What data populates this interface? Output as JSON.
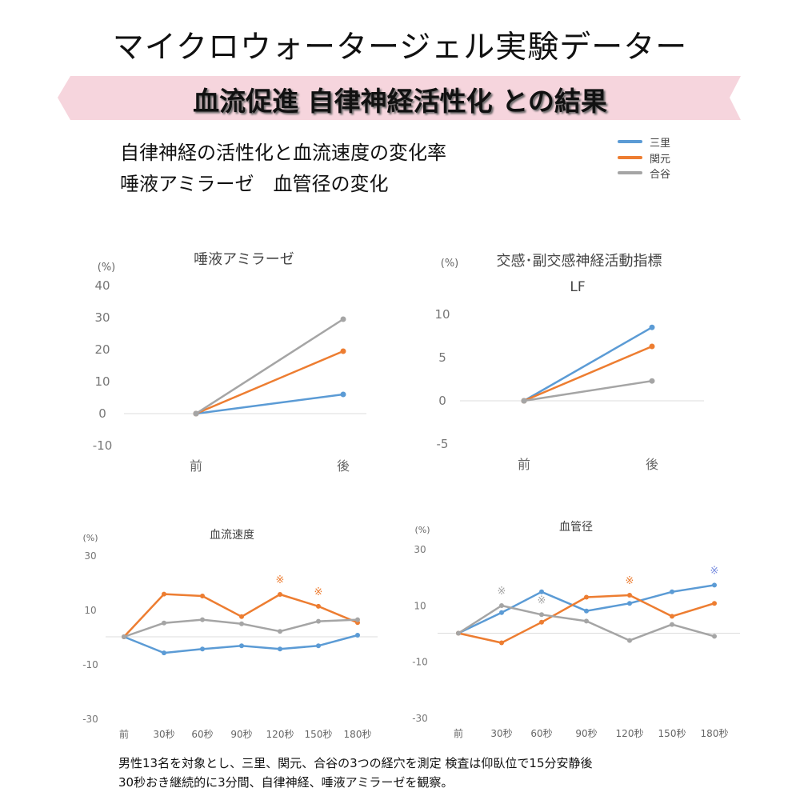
{
  "header": {
    "title": "マイクロウォータージェル実験データー",
    "banner": "血流促進 自律神経活性化 との結果",
    "subtitle_line1": "自律神経の活性化と血流速度の変化率",
    "subtitle_line2": "唾液アミラーゼ　血管径の変化",
    "banner_color": "#f6d5dd"
  },
  "legend": [
    {
      "name": "三里",
      "color": "#5b9bd5"
    },
    {
      "name": "関元",
      "color": "#ed7d31"
    },
    {
      "name": "合谷",
      "color": "#a5a5a5"
    }
  ],
  "footnote": {
    "line1": "男性13名を対象とし、三里、関元、合谷の3つの経穴を測定 検査は仰臥位で15分安静後",
    "line2": "30秒おき継続的に3分間、自律神経、唾液アミラーゼを観察。"
  },
  "chart_data": [
    {
      "type": "line",
      "title": "唾液アミラーゼ",
      "subtitle": "",
      "ylabel": "(%)",
      "xlabel": "",
      "categories": [
        "前",
        "後"
      ],
      "yticks": [
        40,
        30,
        20,
        10,
        0,
        -10
      ],
      "ylim": [
        -10,
        40
      ],
      "grid": false,
      "series": [
        {
          "name": "三里",
          "color": "#5b9bd5",
          "values": [
            0,
            6
          ]
        },
        {
          "name": "関元",
          "color": "#ed7d31",
          "values": [
            0,
            19.5
          ]
        },
        {
          "name": "合谷",
          "color": "#a5a5a5",
          "values": [
            0,
            29.5
          ]
        }
      ],
      "annotations": []
    },
    {
      "type": "line",
      "title": "交感･副交感神経活動指標",
      "subtitle": "LF",
      "ylabel": "(%)",
      "xlabel": "",
      "categories": [
        "前",
        "後"
      ],
      "yticks": [
        10,
        5,
        0,
        -5
      ],
      "ylim": [
        -5,
        10
      ],
      "grid": false,
      "series": [
        {
          "name": "三里",
          "color": "#5b9bd5",
          "values": [
            0,
            8.5
          ]
        },
        {
          "name": "関元",
          "color": "#ed7d31",
          "values": [
            0,
            6.3
          ]
        },
        {
          "name": "合谷",
          "color": "#a5a5a5",
          "values": [
            0,
            2.3
          ]
        }
      ],
      "annotations": []
    },
    {
      "type": "line",
      "title": "血流速度",
      "subtitle": "",
      "ylabel": "(%)",
      "xlabel": "",
      "categories": [
        "前",
        "30秒",
        "60秒",
        "90秒",
        "120秒",
        "150秒",
        "180秒"
      ],
      "yticks": [
        30,
        10,
        -10,
        -30
      ],
      "ylim": [
        -30,
        30
      ],
      "grid": false,
      "series": [
        {
          "name": "三里",
          "color": "#5b9bd5",
          "values": [
            0,
            -5.9,
            -4.5,
            -3.3,
            -4.5,
            -3.3,
            0.6
          ]
        },
        {
          "name": "関元",
          "color": "#ed7d31",
          "values": [
            0,
            15.7,
            15.0,
            7.4,
            15.6,
            11.2,
            5.2
          ]
        },
        {
          "name": "合谷",
          "color": "#a5a5a5",
          "values": [
            0,
            5.1,
            6.3,
            4.8,
            2.0,
            5.7,
            6.3
          ]
        }
      ],
      "annotations": [
        {
          "text": "※",
          "category": "120秒",
          "series": "関元",
          "color": "#ed7d31"
        },
        {
          "text": "※",
          "category": "150秒",
          "series": "関元",
          "color": "#ed7d31"
        }
      ]
    },
    {
      "type": "line",
      "title": "血管径",
      "subtitle": "",
      "ylabel": "(%)",
      "xlabel": "",
      "categories": [
        "前",
        "30秒",
        "60秒",
        "90秒",
        "120秒",
        "150秒",
        "180秒"
      ],
      "yticks": [
        30,
        10,
        -10,
        -30
      ],
      "ylim": [
        -30,
        30
      ],
      "grid": false,
      "series": [
        {
          "name": "三里",
          "color": "#5b9bd5",
          "values": [
            0,
            7.3,
            14.7,
            7.9,
            10.6,
            14.7,
            17.1
          ]
        },
        {
          "name": "関元",
          "color": "#ed7d31",
          "values": [
            0,
            -3.4,
            3.9,
            12.8,
            13.5,
            6.0,
            10.6
          ]
        },
        {
          "name": "合谷",
          "color": "#a5a5a5",
          "values": [
            0,
            9.8,
            6.6,
            4.3,
            -2.6,
            3.1,
            -1.1
          ]
        }
      ],
      "annotations": [
        {
          "text": "※",
          "category": "30秒",
          "series": "合谷",
          "color": "#a5a5a5"
        },
        {
          "text": "※",
          "category": "60秒",
          "series": "合谷",
          "color": "#a5a5a5"
        },
        {
          "text": "※",
          "category": "120秒",
          "series": "関元",
          "color": "#ed7d31"
        },
        {
          "text": "※",
          "category": "180秒",
          "series": "三里",
          "color": "#7b8fe0"
        }
      ]
    }
  ]
}
